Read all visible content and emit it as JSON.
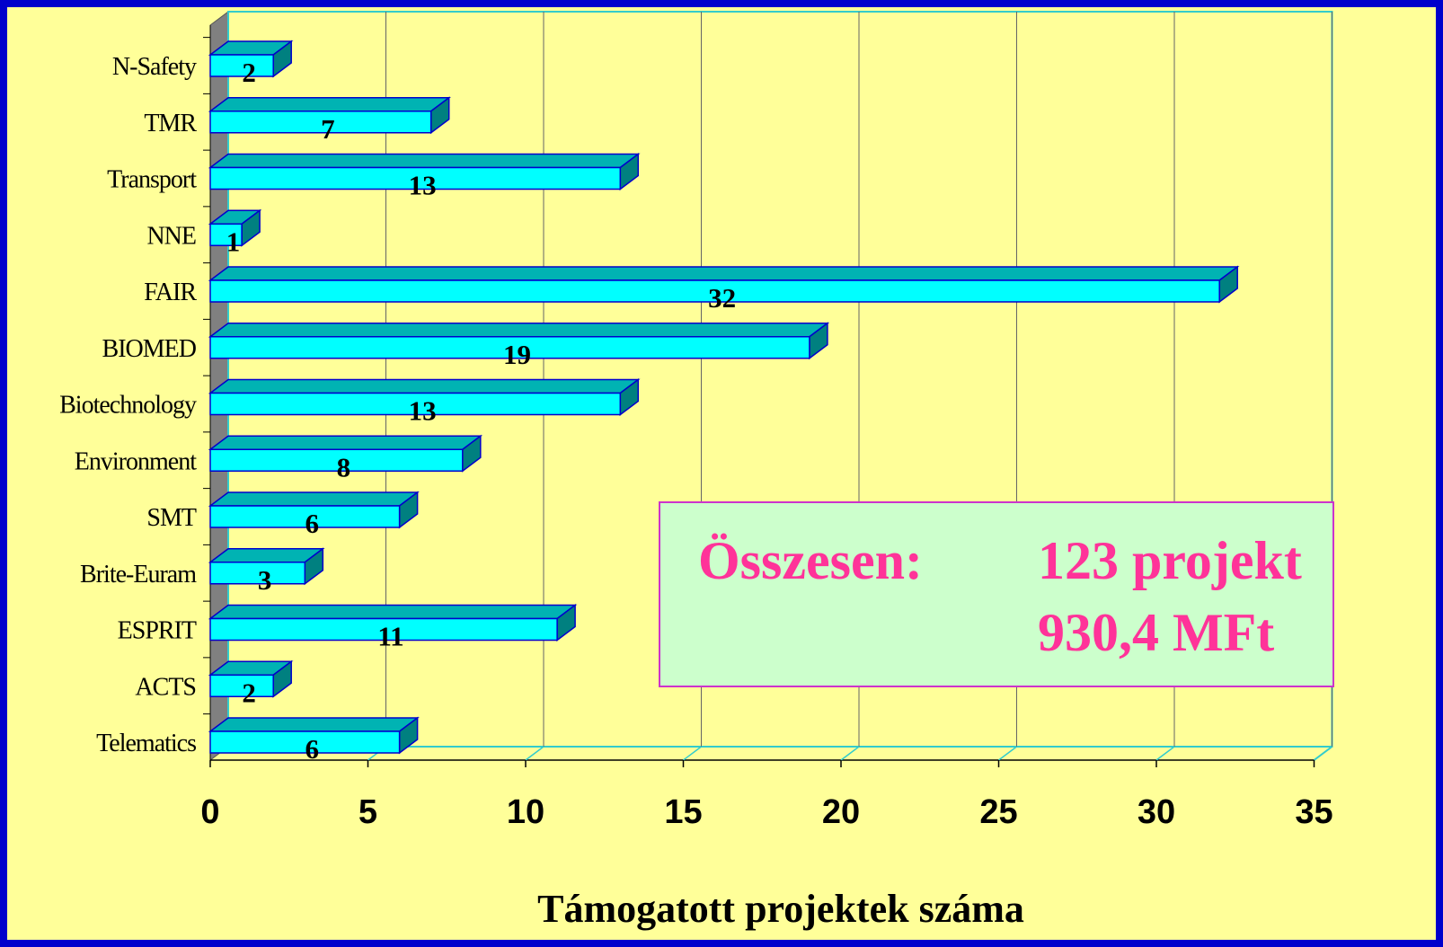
{
  "colors": {
    "background_border": "#0000cc",
    "background": "#ffff99",
    "bar_front": "#00ffff",
    "bar_top": "#00b3b3",
    "bar_side": "#008080",
    "bar_outline": "#0000cc",
    "floor": "#808080",
    "summary_bg": "#ccffcc",
    "summary_border": "#cc33cc",
    "summary_text": "#ff3399"
  },
  "summary": {
    "label": "Összesen:",
    "line1": "123 projekt",
    "line2": "930,4 MFt"
  },
  "chart_data": {
    "type": "bar",
    "orientation": "horizontal",
    "style": "3d",
    "categories": [
      "N-Safety",
      "TMR",
      "Transport",
      "NNE",
      "FAIR",
      "BIOMED",
      "Biotechnology",
      "Environment",
      "SMT",
      "Brite-Euram",
      "ESPRIT",
      "ACTS",
      "Telematics"
    ],
    "values": [
      2,
      7,
      13,
      1,
      32,
      19,
      13,
      8,
      6,
      3,
      11,
      2,
      6
    ],
    "value_labels": [
      "2",
      "7",
      "13",
      "1",
      "32",
      "19",
      "13",
      "8",
      "6",
      "3",
      "11",
      "2",
      "6"
    ],
    "xlim": [
      0,
      35
    ],
    "xticks": [
      0,
      5,
      10,
      15,
      20,
      25,
      30,
      35
    ],
    "xtick_labels": [
      "0",
      "5",
      "10",
      "15",
      "20",
      "25",
      "30",
      "35"
    ],
    "xlabel": "Támogatott projektek száma",
    "ylabel": "",
    "title": "",
    "grid": true,
    "legend": "none"
  }
}
